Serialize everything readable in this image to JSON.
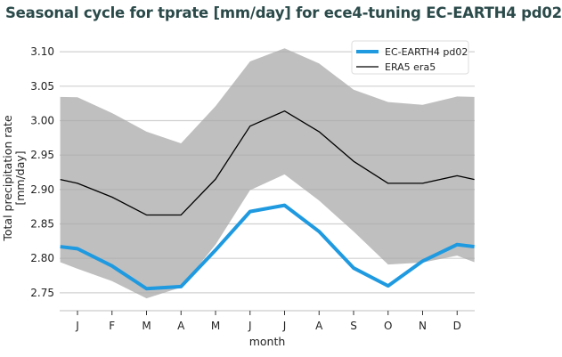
{
  "title": "Seasonal cycle for tprate [mm/day] for ece4-tuning EC-EARTH4 pd02",
  "chart_data": {
    "type": "line",
    "title": "Seasonal cycle for tprate [mm/day] for ece4-tuning EC-EARTH4 pd02",
    "xlabel": "month",
    "ylabel": "Total precipitation rate\n[mm/day]",
    "ylabel_lines": [
      "Total precipitation rate",
      "[mm/day]"
    ],
    "categories": [
      "J",
      "F",
      "M",
      "A",
      "M",
      "J",
      "J",
      "A",
      "S",
      "O",
      "N",
      "D"
    ],
    "yticks": [
      "2.75",
      "2.80",
      "2.85",
      "2.90",
      "2.95",
      "3.00",
      "3.05",
      "3.10"
    ],
    "ylim": [
      2.724,
      3.117
    ],
    "grid": true,
    "legend": "top-right",
    "series": [
      {
        "name": "EC-EARTH4 pd02",
        "color": "#1f9ae0",
        "values": [
          2.814,
          2.789,
          2.756,
          2.759,
          2.812,
          2.868,
          2.877,
          2.839,
          2.786,
          2.76,
          2.796,
          2.82
        ]
      },
      {
        "name": "ERA5 era5",
        "color": "#000000",
        "values": [
          2.909,
          2.889,
          2.863,
          2.863,
          2.915,
          2.992,
          3.014,
          2.984,
          2.941,
          2.909,
          2.909,
          2.92
        ]
      }
    ],
    "band": {
      "color": "#bfbfbf",
      "upper": [
        3.034,
        3.011,
        2.984,
        2.967,
        3.021,
        3.086,
        3.105,
        3.083,
        3.045,
        3.027,
        3.023,
        3.035
      ],
      "lower": [
        2.785,
        2.767,
        2.742,
        2.758,
        2.82,
        2.899,
        2.922,
        2.884,
        2.839,
        2.791,
        2.794,
        2.804
      ]
    }
  }
}
